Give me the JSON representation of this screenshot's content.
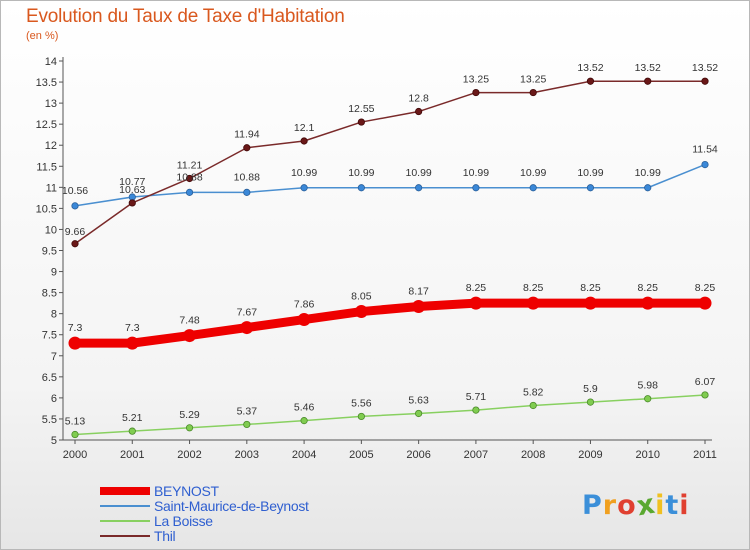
{
  "header": {
    "title": "Evolution du Taux de Taxe d'Habitation",
    "subtitle": "(en %)"
  },
  "logo": {
    "text": "Proxiti",
    "letter_colors": [
      "#3b8fd9",
      "#f0a020",
      "#e04030",
      "#5aa830",
      "#f0c020",
      "#3b8fd9",
      "#e04030"
    ]
  },
  "chart_data": {
    "type": "line",
    "x": [
      "2000",
      "2001",
      "2002",
      "2003",
      "2004",
      "2005",
      "2006",
      "2007",
      "2008",
      "2009",
      "2010",
      "2011"
    ],
    "ylim": [
      5,
      14
    ],
    "yticks": [
      "5",
      "5.5",
      "6",
      "6.5",
      "7",
      "7.5",
      "8",
      "8.5",
      "9",
      "9.5",
      "10",
      "10.5",
      "11",
      "11.5",
      "12",
      "12.5",
      "13",
      "13.5",
      "14"
    ],
    "grid": false,
    "legend_position": "bottom-left",
    "series": [
      {
        "name": "BEYNOST",
        "color": "#ee0000",
        "values": [
          7.3,
          7.3,
          7.48,
          7.67,
          7.86,
          8.05,
          8.17,
          8.25,
          8.25,
          8.25,
          8.25,
          8.25
        ],
        "labels": [
          "7.3",
          "7.3",
          "7.48",
          "7.67",
          "7.86",
          "8.05",
          "8.17",
          "8.25",
          "8.25",
          "8.25",
          "8.25",
          "8.25"
        ]
      },
      {
        "name": "Saint-Maurice-de-Beynost",
        "color": "#4a8fd0",
        "values": [
          10.56,
          10.77,
          10.88,
          10.88,
          10.99,
          10.99,
          10.99,
          10.99,
          10.99,
          10.99,
          10.99,
          11.54
        ],
        "labels": [
          "10.56",
          "10.77",
          "10.88",
          "10.88",
          "10.99",
          "10.99",
          "10.99",
          "10.99",
          "10.99",
          "10.99",
          "10.99",
          "11.54"
        ]
      },
      {
        "name": "La Boisse",
        "color": "#88d060",
        "values": [
          5.13,
          5.21,
          5.29,
          5.37,
          5.46,
          5.56,
          5.63,
          5.71,
          5.82,
          5.9,
          5.98,
          6.07
        ],
        "labels": [
          "5.13",
          "5.21",
          "5.29",
          "5.37",
          "5.46",
          "5.56",
          "5.63",
          "5.71",
          "5.82",
          "5.9",
          "5.98",
          "6.07"
        ]
      },
      {
        "name": "Thil",
        "color": "#7a2a2a",
        "values": [
          9.66,
          10.63,
          11.21,
          11.94,
          12.1,
          12.55,
          12.8,
          13.25,
          13.25,
          13.52,
          13.52,
          13.52
        ],
        "labels": [
          "9.66",
          "10.63",
          "11.21",
          "11.94",
          "12.1",
          "12.55",
          "12.8",
          "13.25",
          "13.25",
          "13.52",
          "13.52",
          "13.52"
        ]
      }
    ]
  }
}
